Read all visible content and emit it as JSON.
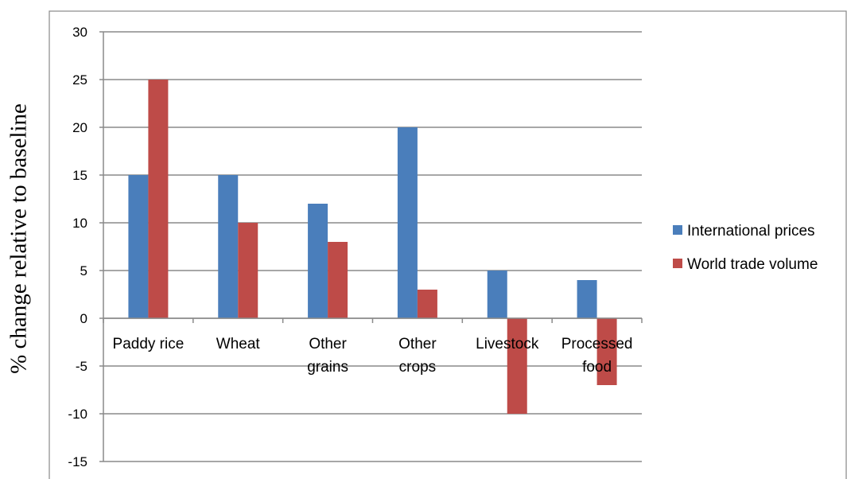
{
  "chart_data": {
    "type": "bar",
    "ylabel": "% change relative  to baseline",
    "xlabel": "",
    "title": "",
    "ylim": [
      -15,
      30
    ],
    "yticks": [
      -15,
      -10,
      -5,
      0,
      5,
      10,
      15,
      20,
      25,
      30
    ],
    "grid": true,
    "legend_position": "right",
    "categories": [
      [
        "Paddy rice"
      ],
      [
        "Wheat"
      ],
      [
        "Other",
        "grains"
      ],
      [
        "Other",
        "crops"
      ],
      [
        "Livestock"
      ],
      [
        "Processed",
        "food"
      ]
    ],
    "series": [
      {
        "name": "International prices",
        "color": "#4a7ebb",
        "values": [
          15,
          15,
          12,
          20,
          5,
          4
        ]
      },
      {
        "name": "World trade volume",
        "color": "#be4b48",
        "values": [
          25,
          10,
          8,
          3,
          -10,
          -7
        ]
      }
    ]
  }
}
